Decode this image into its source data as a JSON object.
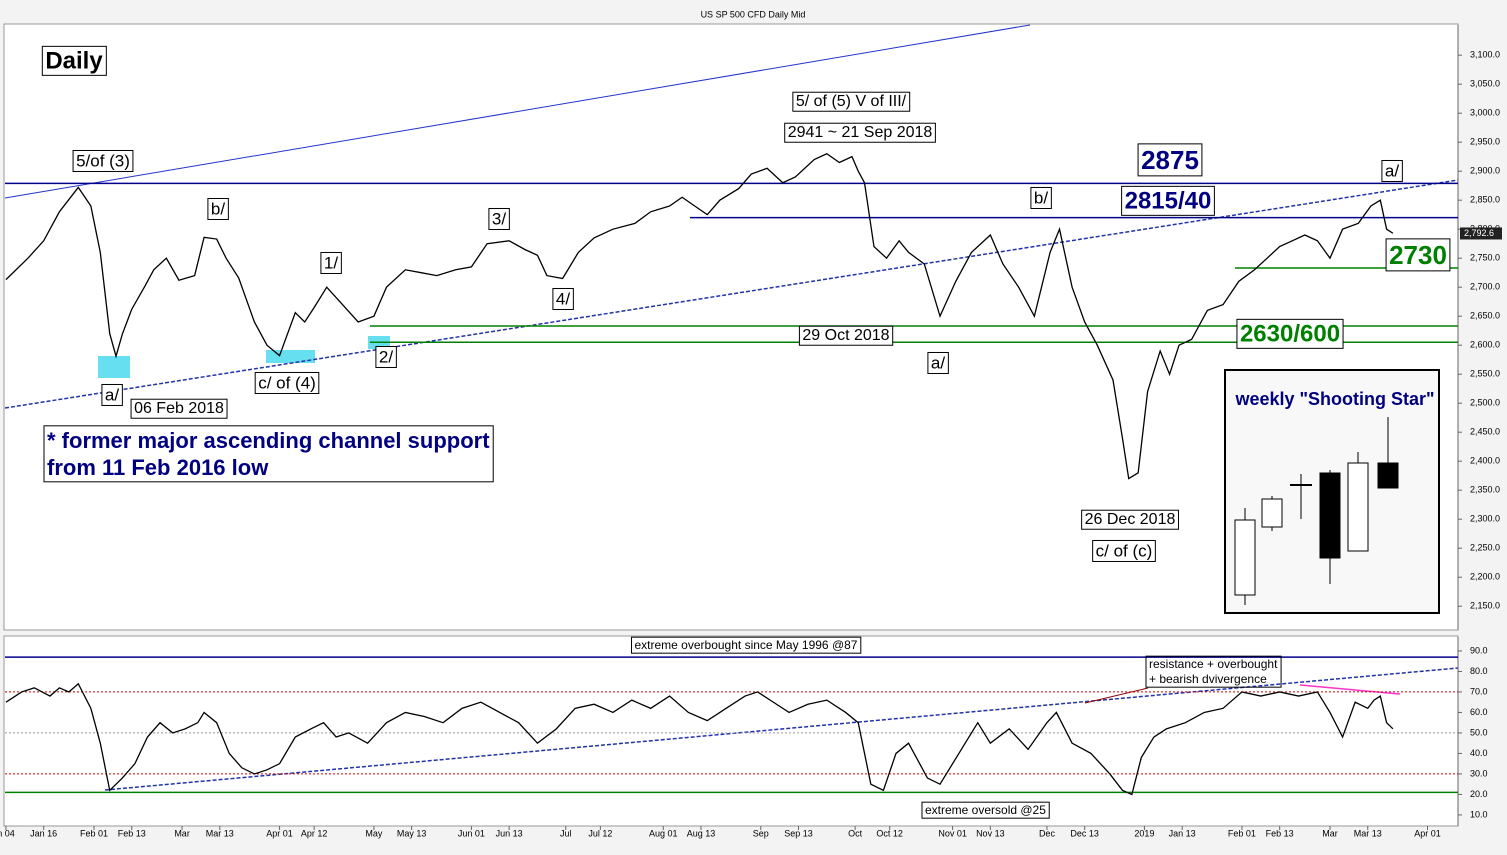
{
  "chart_data": [
    {
      "type": "line",
      "title": "US SP 500 CFD Daily Mid",
      "x": [
        3,
        10,
        15,
        20,
        26,
        30,
        33,
        36,
        38,
        40,
        43,
        47,
        50,
        54,
        58,
        63,
        66,
        70,
        73,
        77,
        82,
        86,
        90,
        95,
        98,
        101,
        105,
        110,
        115,
        120,
        124,
        130,
        135,
        140,
        146,
        151,
        156,
        163,
        168,
        172,
        175,
        180,
        185,
        190,
        196,
        203,
        208,
        214,
        218,
        222,
        226,
        230,
        236,
        240,
        245,
        250,
        254,
        260,
        264,
        268,
        272,
        274,
        276,
        279,
        283,
        287,
        290,
        295,
        300,
        305,
        310,
        316,
        320,
        325,
        330,
        335,
        338,
        342,
        346,
        350,
        355,
        358,
        360,
        363,
        366,
        370,
        373,
        376,
        380,
        385,
        390,
        395,
        400,
        404,
        408,
        412,
        416,
        420,
        424,
        428,
        433,
        437,
        440,
        442,
        444
      ],
      "series": [
        {
          "color": "#000000",
          "values": [
            2713,
            2750,
            2780,
            2830,
            2872,
            2840,
            2760,
            2620,
            2581,
            2619,
            2662,
            2700,
            2730,
            2750,
            2712,
            2720,
            2786,
            2783,
            2750,
            2716,
            2640,
            2600,
            2582,
            2656,
            2640,
            2665,
            2700,
            2670,
            2640,
            2650,
            2700,
            2730,
            2725,
            2720,
            2730,
            2735,
            2775,
            2780,
            2765,
            2755,
            2720,
            2715,
            2760,
            2785,
            2800,
            2810,
            2830,
            2840,
            2855,
            2840,
            2825,
            2850,
            2870,
            2895,
            2905,
            2880,
            2890,
            2920,
            2930,
            2915,
            2925,
            2900,
            2880,
            2770,
            2750,
            2780,
            2760,
            2740,
            2650,
            2710,
            2760,
            2790,
            2740,
            2700,
            2650,
            2760,
            2800,
            2700,
            2640,
            2600,
            2540,
            2440,
            2370,
            2380,
            2520,
            2590,
            2550,
            2600,
            2610,
            2660,
            2670,
            2710,
            2730,
            2750,
            2770,
            2780,
            2790,
            2780,
            2750,
            2800,
            2810,
            2840,
            2850,
            2800,
            2793
          ]
        }
      ],
      "xlim": [
        2.7,
        464.7
      ],
      "xticks": [
        {
          "value": 3,
          "label": "n 04"
        },
        {
          "value": 15,
          "label": "Jan 16"
        },
        {
          "value": 31,
          "label": "Feb 01"
        },
        {
          "value": 43,
          "label": "Feb 13"
        },
        {
          "value": 59,
          "label": "Mar"
        },
        {
          "value": 71,
          "label": "Mar 13"
        },
        {
          "value": 90,
          "label": "Apr 01"
        },
        {
          "value": 101,
          "label": "Apr 12"
        },
        {
          "value": 120,
          "label": "May"
        },
        {
          "value": 132,
          "label": "May 13"
        },
        {
          "value": 151,
          "label": "Jun 01"
        },
        {
          "value": 163,
          "label": "Jun 13"
        },
        {
          "value": 181,
          "label": "Jul"
        },
        {
          "value": 192,
          "label": "Jul 12"
        },
        {
          "value": 212,
          "label": "Aug 01"
        },
        {
          "value": 224,
          "label": "Aug 13"
        },
        {
          "value": 243,
          "label": "Sep"
        },
        {
          "value": 255,
          "label": "Sep 13"
        },
        {
          "value": 273,
          "label": "Oct"
        },
        {
          "value": 284,
          "label": "Oct 12"
        },
        {
          "value": 304,
          "label": "Nov 01"
        },
        {
          "value": 316,
          "label": "Nov 13"
        },
        {
          "value": 334,
          "label": "Dec"
        },
        {
          "value": 346,
          "label": "Dec 13"
        },
        {
          "value": 365,
          "label": "2019"
        },
        {
          "value": 377,
          "label": "Jan 13"
        },
        {
          "value": 396,
          "label": "Feb 01"
        },
        {
          "value": 408,
          "label": "Feb 13"
        },
        {
          "value": 424,
          "label": "Mar"
        },
        {
          "value": 436,
          "label": "Mar 13"
        },
        {
          "value": 455,
          "label": "Apr 01"
        }
      ],
      "ylim": [
        2109,
        3152
      ],
      "yticks": [
        {
          "value": 2150,
          "label": "2,150.0"
        },
        {
          "value": 2200,
          "label": "2,200.0"
        },
        {
          "value": 2250,
          "label": "2,250.0"
        },
        {
          "value": 2300,
          "label": "2,300.0"
        },
        {
          "value": 2350,
          "label": "2,350.0"
        },
        {
          "value": 2400,
          "label": "2,400.0"
        },
        {
          "value": 2450,
          "label": "2,450.0"
        },
        {
          "value": 2500,
          "label": "2,500.0"
        },
        {
          "value": 2550,
          "label": "2,550.0"
        },
        {
          "value": 2600,
          "label": "2,600.0"
        },
        {
          "value": 2650,
          "label": "2,650.0"
        },
        {
          "value": 2700,
          "label": "2,700.0"
        },
        {
          "value": 2750,
          "label": "2,750.0"
        },
        {
          "value": 2800,
          "label": "2,800.0"
        },
        {
          "value": 2850,
          "label": "2,850.0"
        },
        {
          "value": 2900,
          "label": "2,900.0"
        },
        {
          "value": 2950,
          "label": "2,950.0"
        },
        {
          "value": 3000,
          "label": "3,000.0"
        },
        {
          "value": 3050,
          "label": "3,050.0"
        },
        {
          "value": 3100,
          "label": "3,100.0"
        }
      ],
      "last_value": {
        "value": 2792.6,
        "label": "2,792.6"
      },
      "levels": [
        {
          "value": 2879,
          "color": "#00008b"
        },
        {
          "value": 2820,
          "color": "#00008b"
        },
        {
          "value": 2733,
          "color": "#008000"
        },
        {
          "value": 2633,
          "color": "#008000"
        },
        {
          "value": 2605,
          "color": "#008000"
        }
      ],
      "annotations": [
        "Daily",
        "5/of (3)",
        "b/",
        "1/",
        "3/",
        "4/",
        "2/",
        "a/",
        "06 Feb 2018",
        "c/ of (4)",
        "* former major ascending channel support",
        "from 11 Feb 2016 low",
        "5/ of (5) V of III/",
        "2941 ~ 21 Sep 2018",
        "2875",
        "2815/40",
        "b/",
        "a/",
        "29 Oct 2018",
        "26 Dec 2018",
        "c/ of (c)",
        "a/",
        "2730",
        "2630/600",
        "weekly \"Shooting Star\""
      ]
    },
    {
      "type": "line",
      "x": [
        3,
        8,
        12,
        17,
        20,
        23,
        26,
        30,
        33,
        36,
        40,
        44,
        48,
        52,
        56,
        60,
        64,
        66,
        70,
        74,
        78,
        82,
        86,
        90,
        95,
        100,
        104,
        108,
        112,
        118,
        124,
        130,
        136,
        142,
        148,
        154,
        160,
        166,
        172,
        178,
        184,
        190,
        196,
        202,
        208,
        214,
        220,
        226,
        232,
        238,
        242,
        246,
        252,
        258,
        264,
        270,
        274,
        278,
        282,
        286,
        290,
        296,
        300,
        306,
        312,
        316,
        322,
        328,
        334,
        337,
        342,
        348,
        354,
        358,
        361,
        364,
        368,
        372,
        378,
        384,
        390,
        396,
        402,
        408,
        414,
        420,
        424,
        428,
        432,
        436,
        438,
        440,
        442,
        444
      ],
      "series": [
        {
          "color": "#000000",
          "values": [
            65,
            70,
            72,
            68,
            72,
            70,
            74,
            62,
            45,
            22,
            28,
            35,
            48,
            55,
            50,
            52,
            55,
            60,
            55,
            40,
            33,
            30,
            32,
            35,
            48,
            52,
            55,
            48,
            50,
            45,
            55,
            60,
            58,
            55,
            62,
            65,
            60,
            55,
            45,
            52,
            62,
            64,
            60,
            66,
            62,
            68,
            60,
            56,
            62,
            68,
            70,
            66,
            60,
            64,
            66,
            60,
            55,
            25,
            22,
            40,
            45,
            28,
            25,
            40,
            55,
            45,
            52,
            42,
            55,
            60,
            45,
            40,
            30,
            22,
            20,
            38,
            48,
            52,
            55,
            60,
            62,
            70,
            68,
            70,
            68,
            70,
            60,
            48,
            65,
            62,
            66,
            68,
            55,
            52
          ]
        }
      ],
      "xlim": [
        2.7,
        464.7
      ],
      "ylim": [
        4.6,
        96.8
      ],
      "yticks": [
        {
          "value": 10,
          "label": "10.0"
        },
        {
          "value": 20,
          "label": "20.0"
        },
        {
          "value": 30,
          "label": "30.0"
        },
        {
          "value": 40,
          "label": "40.0"
        },
        {
          "value": 50,
          "label": "50.0"
        },
        {
          "value": 60,
          "label": "60.0"
        },
        {
          "value": 70,
          "label": "70.0"
        },
        {
          "value": 80,
          "label": "80.0"
        },
        {
          "value": 90,
          "label": "90.0"
        }
      ],
      "levels": [
        {
          "value": 87,
          "color": "#00008b"
        },
        {
          "value": 70,
          "color": "#cc0000",
          "dash": true
        },
        {
          "value": 50,
          "color": "#999999",
          "dash": true
        },
        {
          "value": 30,
          "color": "#cc0000",
          "dash": true
        },
        {
          "value": 21,
          "color": "#008000"
        }
      ],
      "annotations": [
        "extreme overbought since May 1996 @87",
        "resistance + overbought",
        "+ bearish dvivergence",
        "extreme oversold @25"
      ]
    }
  ]
}
